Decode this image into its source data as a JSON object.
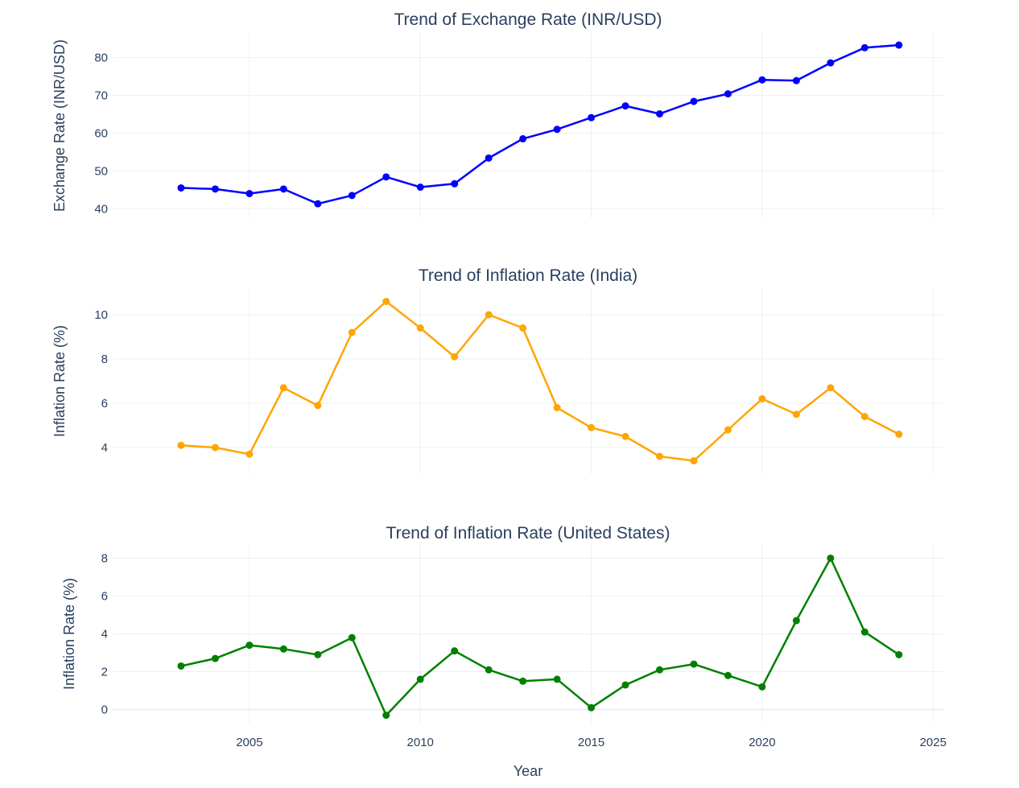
{
  "chart_data": [
    {
      "type": "line",
      "title": "Trend of Exchange Rate (INR/USD)",
      "xlabel": "",
      "ylabel": "Exchange Rate (INR/USD)",
      "color": "#0000ff",
      "ylim": [
        37.5,
        86.5
      ],
      "yticks": [
        40,
        50,
        60,
        70,
        80
      ],
      "xlim": [
        2001,
        2025.3
      ],
      "xticks": [
        2005,
        2010,
        2015,
        2020,
        2025
      ],
      "show_xtick_labels": false,
      "grid": true,
      "x": [
        2003,
        2004,
        2005,
        2006,
        2007,
        2008,
        2009,
        2010,
        2011,
        2012,
        2013,
        2014,
        2015,
        2016,
        2017,
        2018,
        2019,
        2020,
        2021,
        2022,
        2023,
        2024
      ],
      "values": [
        45.5,
        45.2,
        44.0,
        45.2,
        41.3,
        43.5,
        48.4,
        45.7,
        46.6,
        53.4,
        58.5,
        61.0,
        64.1,
        67.2,
        65.1,
        68.4,
        70.4,
        74.1,
        73.9,
        78.6,
        82.6,
        83.3
      ]
    },
    {
      "type": "line",
      "title": "Trend of Inflation Rate (India)",
      "xlabel": "",
      "ylabel": "Inflation Rate (%)",
      "color": "#ffa500",
      "ylim": [
        2.8,
        11.2
      ],
      "yticks": [
        4,
        6,
        8,
        10
      ],
      "xlim": [
        2001,
        2025.3
      ],
      "xticks": [
        2005,
        2010,
        2015,
        2020,
        2025
      ],
      "show_xtick_labels": false,
      "grid": true,
      "x": [
        2003,
        2004,
        2005,
        2006,
        2007,
        2008,
        2009,
        2010,
        2011,
        2012,
        2013,
        2014,
        2015,
        2016,
        2017,
        2018,
        2019,
        2020,
        2021,
        2022,
        2023,
        2024
      ],
      "values": [
        4.1,
        4.0,
        3.7,
        6.7,
        5.9,
        9.2,
        10.6,
        9.4,
        8.1,
        10.0,
        9.4,
        5.8,
        4.9,
        4.5,
        3.6,
        3.4,
        4.8,
        6.2,
        5.5,
        6.7,
        5.4,
        4.6
      ]
    },
    {
      "type": "line",
      "title": "Trend of Inflation Rate (United States)",
      "xlabel": "Year",
      "ylabel": "Inflation Rate (%)",
      "color": "#008000",
      "ylim": [
        -0.7,
        8.7
      ],
      "yticks": [
        0,
        2,
        4,
        6,
        8
      ],
      "xlim": [
        2001,
        2025.3
      ],
      "xticks": [
        2005,
        2010,
        2015,
        2020,
        2025
      ],
      "show_xtick_labels": true,
      "grid": true,
      "x": [
        2003,
        2004,
        2005,
        2006,
        2007,
        2008,
        2009,
        2010,
        2011,
        2012,
        2013,
        2014,
        2015,
        2016,
        2017,
        2018,
        2019,
        2020,
        2021,
        2022,
        2023,
        2024
      ],
      "values": [
        2.3,
        2.7,
        3.4,
        3.2,
        2.9,
        3.8,
        -0.3,
        1.6,
        3.1,
        2.1,
        1.5,
        1.6,
        0.1,
        1.3,
        2.1,
        2.4,
        1.8,
        1.2,
        4.7,
        8.0,
        4.1,
        2.9
      ]
    }
  ]
}
